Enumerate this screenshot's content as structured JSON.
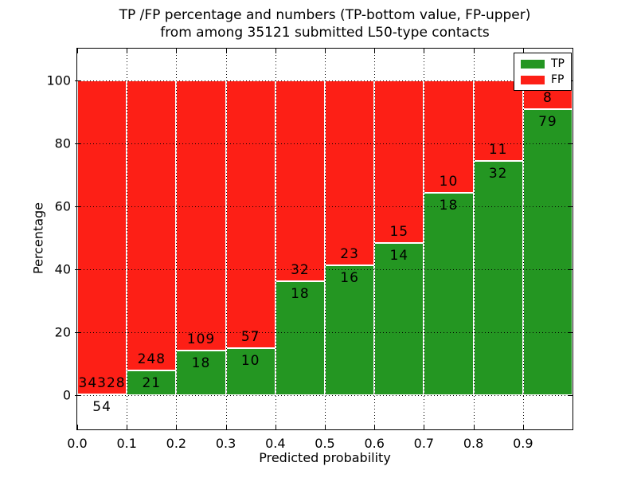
{
  "chart_data": {
    "type": "bar",
    "stacked": true,
    "title_lines": [
      "TP /FP percentage and numbers (TP-bottom value, FP-upper)",
      "from among 35121 submitted L50-type contacts"
    ],
    "xlabel": "Predicted probability",
    "ylabel": "Percentage",
    "xlim": [
      0.0,
      1.0
    ],
    "ylim": [
      -11,
      110
    ],
    "grid": true,
    "legend_position": "upper right",
    "bin_edges": [
      0.0,
      0.1,
      0.2,
      0.3,
      0.4,
      0.5,
      0.6,
      0.7,
      0.8,
      0.9,
      1.0
    ],
    "xtick_values": [
      0.0,
      0.1,
      0.2,
      0.3,
      0.4,
      0.5,
      0.6,
      0.7,
      0.8,
      0.9
    ],
    "xtick_labels": [
      "0.0",
      "0.1",
      "0.2",
      "0.3",
      "0.4",
      "0.5",
      "0.6",
      "0.7",
      "0.8",
      "0.9"
    ],
    "ytick_values": [
      0,
      20,
      40,
      60,
      80,
      100
    ],
    "ytick_labels": [
      "0",
      "20",
      "40",
      "60",
      "80",
      "100"
    ],
    "total_contacts": 35121,
    "series": [
      {
        "name": "TP",
        "color": "#249622",
        "counts": [
          54,
          21,
          18,
          10,
          18,
          16,
          14,
          18,
          32,
          79
        ],
        "percent": [
          0.16,
          7.81,
          14.17,
          14.93,
          36.0,
          41.03,
          48.28,
          64.29,
          74.42,
          90.8
        ]
      },
      {
        "name": "FP",
        "color": "#fd1f16",
        "counts": [
          34328,
          248,
          109,
          57,
          32,
          23,
          15,
          10,
          11,
          8
        ],
        "percent": [
          99.84,
          92.19,
          85.83,
          85.07,
          64.0,
          58.97,
          51.72,
          35.71,
          25.58,
          9.2
        ]
      }
    ]
  }
}
